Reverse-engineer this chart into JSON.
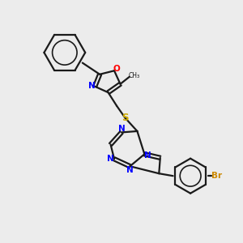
{
  "background_color": "#ececec",
  "bond_color": "#1a1a1a",
  "nitrogen_color": "#0000ff",
  "oxygen_color": "#ff0000",
  "sulfur_color": "#ccaa00",
  "bromine_label_color": "#cc8800",
  "figsize": [
    3.0,
    3.0
  ],
  "dpi": 100,
  "xlim": [
    0,
    10
  ],
  "ylim": [
    0,
    10
  ]
}
